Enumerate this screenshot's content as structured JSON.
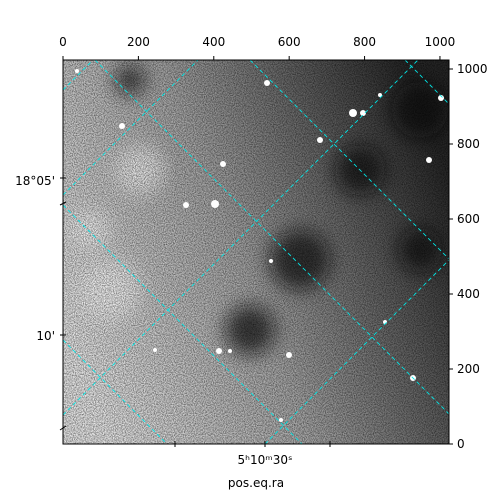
{
  "chart_data": {
    "type": "image",
    "xlabel": "pos.eq.ra",
    "xlim": [
      0,
      1024
    ],
    "ylim": [
      0,
      1024
    ],
    "xticks": [
      0,
      200,
      400,
      600,
      800,
      1000
    ],
    "y2ticks": [
      0,
      200,
      400,
      600,
      800,
      1000
    ],
    "dec_ticks": [
      "18°05'",
      "10'"
    ],
    "ra_ticks": [
      "5ʰ10ᵐ30ˢ"
    ],
    "grid": true,
    "grid_color": "#00e5e5",
    "cmap": "gray"
  }
}
